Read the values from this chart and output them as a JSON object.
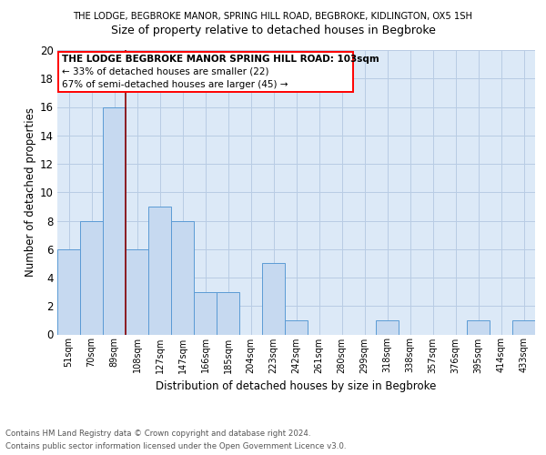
{
  "title_top": "THE LODGE, BEGBROKE MANOR, SPRING HILL ROAD, BEGBROKE, KIDLINGTON, OX5 1SH",
  "title_main": "Size of property relative to detached houses in Begbroke",
  "xlabel": "Distribution of detached houses by size in Begbroke",
  "ylabel": "Number of detached properties",
  "bar_labels": [
    "51sqm",
    "70sqm",
    "89sqm",
    "108sqm",
    "127sqm",
    "147sqm",
    "166sqm",
    "185sqm",
    "204sqm",
    "223sqm",
    "242sqm",
    "261sqm",
    "280sqm",
    "299sqm",
    "318sqm",
    "338sqm",
    "357sqm",
    "376sqm",
    "395sqm",
    "414sqm",
    "433sqm"
  ],
  "bar_values": [
    6,
    8,
    16,
    6,
    9,
    8,
    3,
    3,
    0,
    5,
    1,
    0,
    0,
    0,
    1,
    0,
    0,
    0,
    1,
    0,
    1
  ],
  "bar_color": "#c6d9f0",
  "bar_edge_color": "#5b9bd5",
  "grid_color": "#b8cce4",
  "background_color": "#dce9f7",
  "ylim": [
    0,
    20
  ],
  "yticks": [
    0,
    2,
    4,
    6,
    8,
    10,
    12,
    14,
    16,
    18,
    20
  ],
  "red_line_x": 2.5,
  "property_line_label": "THE LODGE BEGBROKE MANOR SPRING HILL ROAD: 103sqm",
  "annotation_line1": "← 33% of detached houses are smaller (22)",
  "annotation_line2": "67% of semi-detached houses are larger (45) →",
  "footnote1": "Contains HM Land Registry data © Crown copyright and database right 2024.",
  "footnote2": "Contains public sector information licensed under the Open Government Licence v3.0."
}
